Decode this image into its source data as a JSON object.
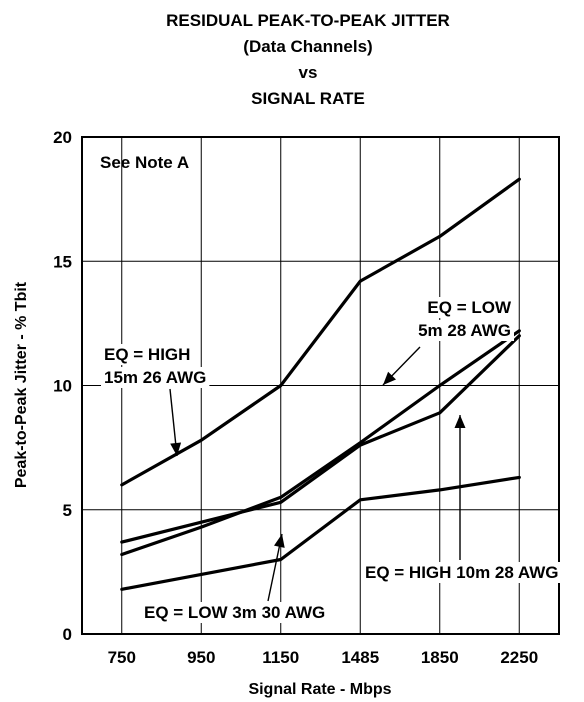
{
  "chart_data": {
    "type": "line",
    "title": [
      "RESIDUAL PEAK-TO-PEAK JITTER",
      "(Data Channels)",
      "vs",
      "SIGNAL RATE"
    ],
    "xlabel": "Signal Rate - Mbps",
    "ylabel": "Peak-to-Peak Jitter - % Tbit",
    "categories": [
      "750",
      "950",
      "1150",
      "1485",
      "1850",
      "2250"
    ],
    "ylim": [
      0,
      20
    ],
    "yticks": [
      0,
      5,
      10,
      15,
      20
    ],
    "grid": true,
    "note": "See Note A",
    "series": [
      {
        "name": "EQ = HIGH 15m 26 AWG",
        "values": [
          6.0,
          7.8,
          10.0,
          14.2,
          16.0,
          18.3
        ]
      },
      {
        "name": "EQ = LOW 5m 28 AWG",
        "values": [
          3.2,
          4.3,
          5.5,
          7.7,
          10.0,
          12.2
        ]
      },
      {
        "name": "EQ = HIGH 10m 28 AWG",
        "values": [
          3.7,
          4.5,
          5.3,
          7.6,
          8.9,
          12.0
        ]
      },
      {
        "name": "EQ = LOW 3m 30 AWG",
        "values": [
          1.8,
          2.4,
          3.0,
          5.4,
          5.8,
          6.3
        ]
      }
    ],
    "annotations": [
      {
        "lines": [
          "EQ = HIGH",
          "15m 26 AWG"
        ],
        "series": 0
      },
      {
        "lines": [
          "EQ = LOW",
          "5m 28 AWG"
        ],
        "series": 1
      },
      {
        "lines": [
          "EQ = HIGH 10m 28 AWG"
        ],
        "series": 2
      },
      {
        "lines": [
          "EQ = LOW 3m 30 AWG"
        ],
        "series": 3
      }
    ]
  }
}
